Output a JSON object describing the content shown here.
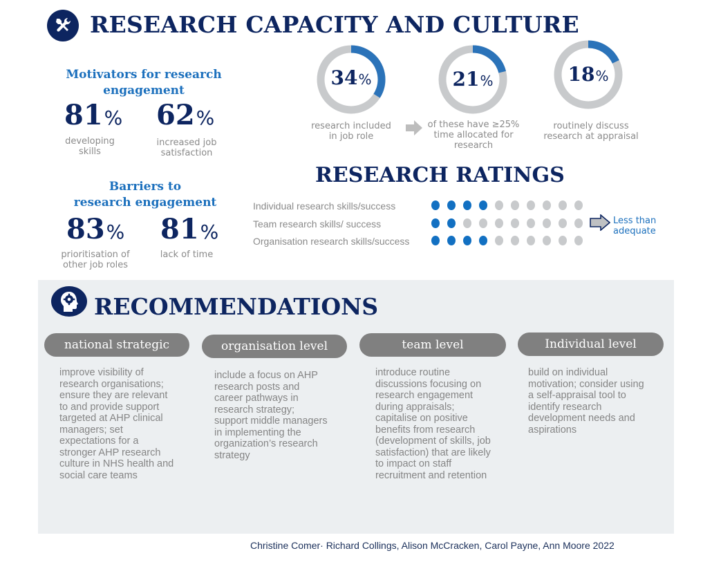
{
  "header": {
    "title": "RESEARCH CAPACITY AND CULTURE",
    "icon": "tools-icon"
  },
  "motivators": {
    "heading_line1": "Motivators for research",
    "heading_line2": "engagement",
    "stats": [
      {
        "value": "81",
        "unit": "%",
        "label_line1": "developing",
        "label_line2": "skills"
      },
      {
        "value": "62",
        "unit": "%",
        "label_line1": "increased job",
        "label_line2": "satisfaction"
      }
    ]
  },
  "barriers": {
    "heading_line1": "Barriers to",
    "heading_line2": "research engagement",
    "stats": [
      {
        "value": "83",
        "unit": "%",
        "label_line1": "prioritisation of",
        "label_line2": "other job roles"
      },
      {
        "value": "81",
        "unit": "%",
        "label_line1": "lack of time",
        "label_line2": ""
      }
    ]
  },
  "donuts": [
    {
      "value": "34",
      "unit": "%",
      "percent": 34,
      "label_line1": "research included",
      "label_line2": "in job role",
      "label_line3": ""
    },
    {
      "value": "21",
      "unit": "%",
      "percent": 21,
      "label_line1": "of these have ≥25%",
      "label_line2": "time allocated for",
      "label_line3": "research"
    },
    {
      "value": "18",
      "unit": "%",
      "percent": 18,
      "label_line1": "routinely discuss",
      "label_line2": "research at appraisal",
      "label_line3": ""
    }
  ],
  "ratings": {
    "title": "RESEARCH RATINGS",
    "rows": [
      {
        "label": "Individual research skills/success",
        "filled": 4,
        "total": 10
      },
      {
        "label": "Team research skills/ success",
        "filled": 2,
        "total": 10
      },
      {
        "label": "Organisation research skills/success",
        "filled": 4,
        "total": 10
      }
    ],
    "arrow_label_line1": "Less than",
    "arrow_label_line2": "adequate"
  },
  "recommendations": {
    "title": "RECOMMENDATIONS",
    "icon": "head-gear-icon",
    "columns": [
      {
        "pill": "national strategic",
        "lines": [
          "improve visibility of",
          "research organisations;",
          "ensure they are relevant",
          "to and provide support",
          "targeted at AHP clinical",
          "managers; set",
          "expectations for a",
          "stronger AHP research",
          "culture in NHS health and",
          "social care teams"
        ]
      },
      {
        "pill": "organisation level",
        "lines": [
          "include a focus on AHP",
          "research posts and",
          "career pathways in",
          "research strategy;",
          "support middle managers",
          "in implementing the",
          "organization’s research",
          "strategy"
        ]
      },
      {
        "pill": "team level",
        "lines": [
          "introduce routine",
          "discussions focusing on",
          "research engagement",
          "during appraisals;",
          "capitalise on positive",
          "benefits from research",
          "(development of skills, job",
          "satisfaction) that are likely",
          "to impact on staff",
          "recruitment and retention"
        ]
      },
      {
        "pill": "Individual level",
        "lines": [
          "build on individual",
          "motivation; consider using",
          "a self-appraisal tool to",
          "identify research",
          "development needs and",
          "aspirations"
        ]
      }
    ]
  },
  "footer": {
    "authors": "Christine Comer· Richard Collings, Alison McCracken, Carol Payne, Ann Moore  2022"
  },
  "colors": {
    "navy": "#0d2560",
    "accent_blue": "#1c70bd",
    "dot_blue": "#1270c2",
    "ring_grey": "#c8cacc",
    "pill_grey": "#808080",
    "panel_bg": "#eceff1"
  }
}
